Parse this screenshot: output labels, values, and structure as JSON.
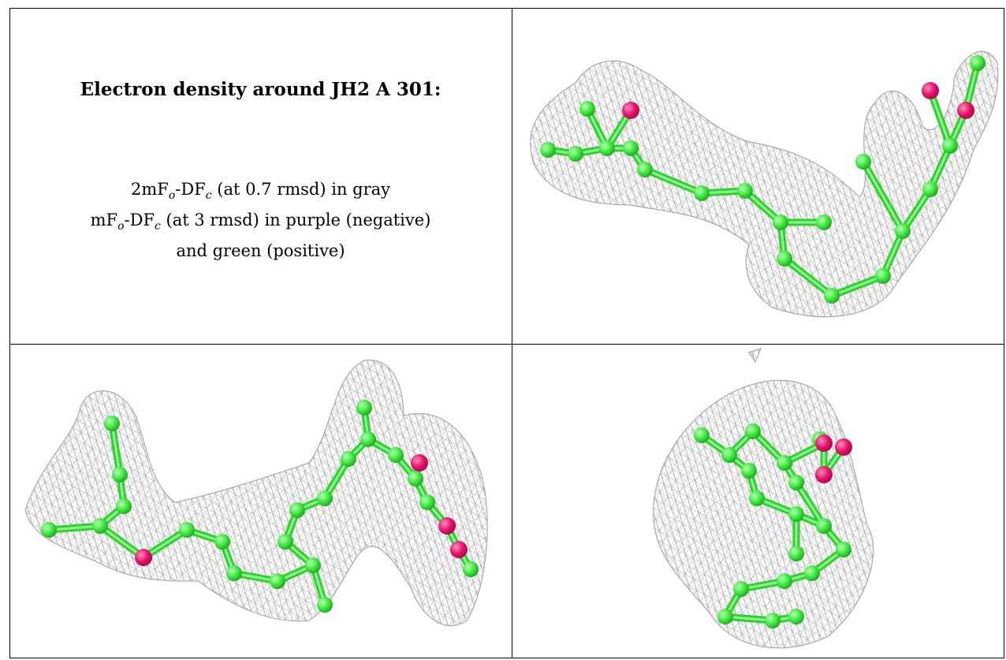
{
  "caption": {
    "title": "Electron density around JH2 A 301:",
    "line1_pre": "2mF",
    "line1_sub1": "o",
    "line1_mid": "-DF",
    "line1_sub2": "c",
    "line1_post": " (at 0.7 rmsd) in gray",
    "line2_pre": "mF",
    "line2_sub1": "o",
    "line2_mid": "-DF",
    "line2_sub2": "c",
    "line2_post": " (at 3 rmsd) in purple (negative)",
    "line3": "and green (positive)"
  },
  "colors": {
    "mesh": "#a9a9a9",
    "carbon": "#3ee83e",
    "oxygen": "#e8136b",
    "grid": "#000000"
  },
  "icons": [
    "electron-density-mesh",
    "ligand-ball-and-stick"
  ]
}
